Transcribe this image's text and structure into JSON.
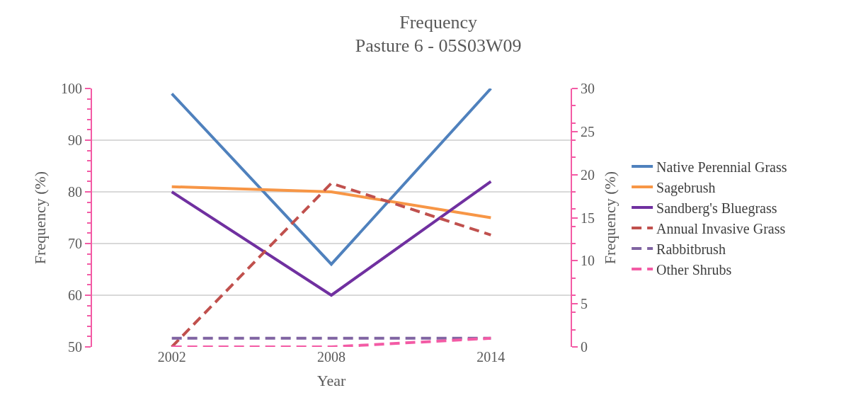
{
  "chart_data": {
    "type": "line",
    "title": "Frequency\nPasture 6 - 05S03W09",
    "xlabel": "Year",
    "ylabel": "Frequency (%)",
    "y2label": "Frequency (%)",
    "categories": [
      "2002",
      "2008",
      "2014"
    ],
    "ylim": [
      50,
      100
    ],
    "yticks": [
      50,
      60,
      70,
      80,
      90,
      100
    ],
    "y2lim": [
      0,
      30
    ],
    "y2ticks": [
      0,
      5,
      10,
      15,
      20,
      25,
      30
    ],
    "grid": "y",
    "legend": "right",
    "marker": "none",
    "series": [
      {
        "name": "Native Perennial Grass",
        "color": "#4f81bd",
        "values": [
          99,
          66,
          100
        ],
        "line_style": "solid"
      },
      {
        "name": "Sagebrush",
        "color": "#f79646",
        "values": [
          81,
          80,
          75
        ],
        "line_style": "solid"
      },
      {
        "name": "Sandberg's Bluegrass",
        "color": "#7030a0",
        "values": [
          80,
          60,
          82
        ],
        "line_style": "solid"
      },
      {
        "name": "Annual Invasive Grass",
        "color": "#c0504d",
        "values": [
          0,
          19,
          13
        ],
        "line_style": "dashed",
        "axis": "y2"
      },
      {
        "name": "Rabbitbrush",
        "color": "#8064a2",
        "values": [
          1,
          1,
          1
        ],
        "line_style": "dashed",
        "axis": "y2"
      },
      {
        "name": "Other Shrubs",
        "color": "#f35ba5",
        "values": [
          0,
          0,
          1
        ],
        "line_style": "dashed",
        "axis": "y2"
      }
    ]
  }
}
